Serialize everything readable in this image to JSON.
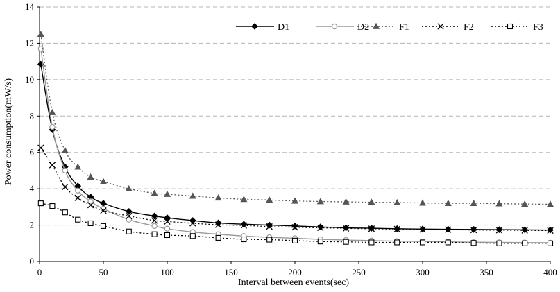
{
  "chart_data": {
    "type": "line",
    "title": "",
    "xlabel": "Interval between events(sec)",
    "ylabel": "Power consumption(mW/s)",
    "xlim": [
      0,
      400
    ],
    "ylim": [
      0,
      14
    ],
    "xticks": [
      0,
      50,
      100,
      150,
      200,
      250,
      300,
      350,
      400
    ],
    "yticks": [
      0,
      2,
      4,
      6,
      8,
      10,
      12,
      14
    ],
    "grid": "horizontal dashed",
    "legend_position": "top-right",
    "x": [
      1,
      10,
      20,
      30,
      40,
      50,
      70,
      90,
      100,
      120,
      140,
      160,
      180,
      200,
      220,
      240,
      260,
      280,
      300,
      320,
      340,
      360,
      380,
      400
    ],
    "series": [
      {
        "name": "D1",
        "line": "solid",
        "marker": "diamond-filled",
        "color": "#000000",
        "values": [
          10.85,
          7.25,
          5.2,
          4.15,
          3.55,
          3.2,
          2.75,
          2.5,
          2.4,
          2.25,
          2.12,
          2.05,
          2.0,
          1.95,
          1.9,
          1.85,
          1.83,
          1.8,
          1.78,
          1.77,
          1.76,
          1.75,
          1.74,
          1.73
        ]
      },
      {
        "name": "D2",
        "line": "solid",
        "marker": "circle-open",
        "color": "#999999",
        "values": [
          11.7,
          7.4,
          5.0,
          3.9,
          3.3,
          2.9,
          2.3,
          1.95,
          1.8,
          1.62,
          1.5,
          1.4,
          1.33,
          1.28,
          1.22,
          1.18,
          1.15,
          1.12,
          1.1,
          1.08,
          1.06,
          1.05,
          1.04,
          1.03
        ]
      },
      {
        "name": "F1",
        "line": "dotted",
        "marker": "triangle-filled",
        "color": "#555555",
        "values": [
          12.5,
          8.2,
          6.1,
          5.2,
          4.65,
          4.4,
          4.0,
          3.75,
          3.7,
          3.6,
          3.5,
          3.42,
          3.38,
          3.33,
          3.3,
          3.28,
          3.26,
          3.24,
          3.22,
          3.2,
          3.2,
          3.18,
          3.16,
          3.15
        ]
      },
      {
        "name": "F2",
        "line": "dotted",
        "marker": "x",
        "color": "#000000",
        "values": [
          6.25,
          5.3,
          4.1,
          3.5,
          3.1,
          2.8,
          2.5,
          2.25,
          2.2,
          2.1,
          2.02,
          1.98,
          1.92,
          1.88,
          1.85,
          1.82,
          1.8,
          1.78,
          1.76,
          1.75,
          1.73,
          1.72,
          1.71,
          1.7
        ]
      },
      {
        "name": "F3",
        "line": "dotted",
        "marker": "square-open",
        "color": "#000000",
        "values": [
          3.2,
          3.05,
          2.7,
          2.3,
          2.1,
          1.95,
          1.65,
          1.5,
          1.45,
          1.4,
          1.3,
          1.22,
          1.2,
          1.15,
          1.1,
          1.08,
          1.05,
          1.05,
          1.05,
          1.05,
          1.02,
          1.0,
          1.0,
          1.0
        ]
      }
    ]
  }
}
